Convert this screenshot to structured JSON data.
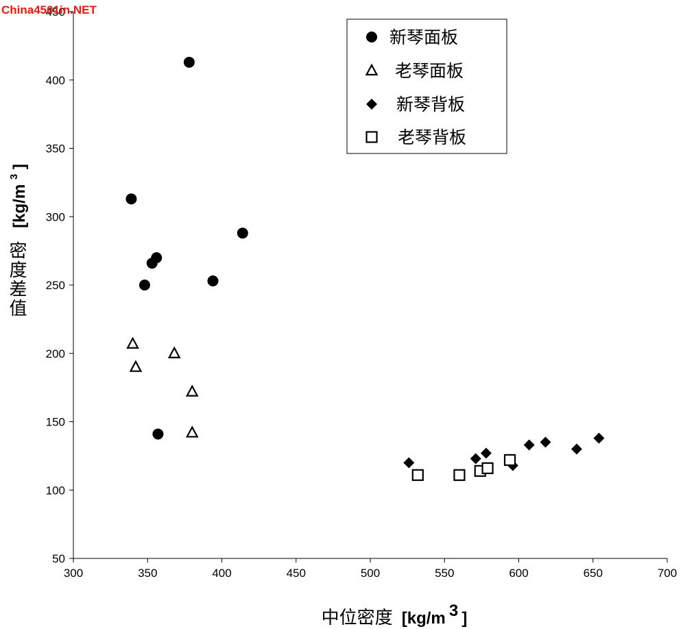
{
  "watermark": "China4501in.NET",
  "chart_data": {
    "type": "scatter",
    "xlabel": "中位密度",
    "xlabel_unit": "[kg/m",
    "ylabel": "密度差值",
    "ylabel_unit": "[kg/m",
    "unit_superscript": "3",
    "unit_close": "]",
    "xlim": [
      300,
      700
    ],
    "ylim": [
      50,
      450
    ],
    "xticks": [
      300,
      350,
      400,
      450,
      500,
      550,
      600,
      650,
      700
    ],
    "yticks": [
      50,
      100,
      150,
      200,
      250,
      300,
      350,
      400,
      450
    ],
    "legend_position": "top-right",
    "series": [
      {
        "name": "新琴面板",
        "marker": "filled-circle",
        "points": [
          [
            378,
            413
          ],
          [
            339,
            313
          ],
          [
            414,
            288
          ],
          [
            356,
            270
          ],
          [
            353,
            266
          ],
          [
            348,
            250
          ],
          [
            394,
            253
          ],
          [
            357,
            141
          ]
        ]
      },
      {
        "name": "老琴面板",
        "marker": "open-triangle",
        "points": [
          [
            340,
            207
          ],
          [
            342,
            190
          ],
          [
            368,
            200
          ],
          [
            380,
            172
          ],
          [
            380,
            142
          ]
        ]
      },
      {
        "name": "新琴背板",
        "marker": "filled-diamond",
        "points": [
          [
            526,
            120
          ],
          [
            571,
            123
          ],
          [
            578,
            127
          ],
          [
            596,
            118
          ],
          [
            607,
            133
          ],
          [
            618,
            135
          ],
          [
            639,
            130
          ],
          [
            654,
            138
          ]
        ]
      },
      {
        "name": "老琴背板",
        "marker": "open-square",
        "points": [
          [
            532,
            111
          ],
          [
            560,
            111
          ],
          [
            574,
            114
          ],
          [
            579,
            116
          ],
          [
            594,
            122
          ]
        ]
      }
    ]
  }
}
